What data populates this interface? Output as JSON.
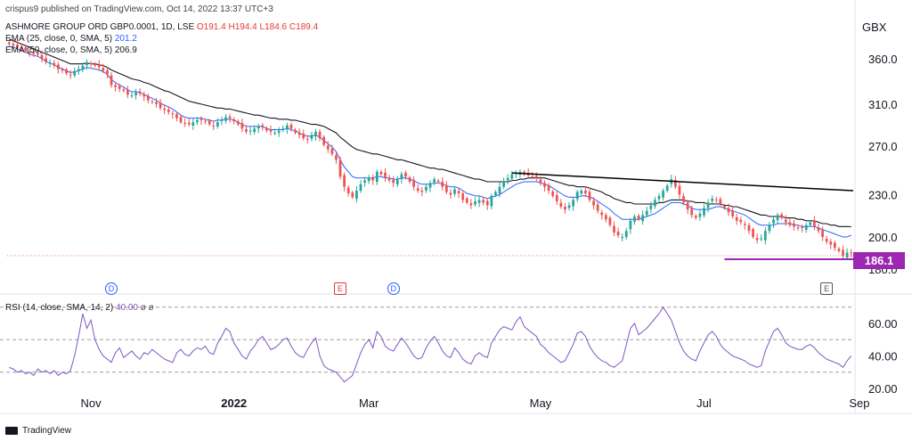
{
  "header": {
    "published": "crispus9 published on TradingView.com, Oct 14, 2022 13:37 UTC+3",
    "symbol": "ASHMORE GROUP ORD GBP0.0001, 1D, LSE",
    "ohlc": {
      "o_label": "O",
      "o": "191.4",
      "h_label": "H",
      "h": "194.4",
      "l_label": "L",
      "l": "184.6",
      "c_label": "C",
      "c": "189.4"
    },
    "ema25_label": "EMA (25, close, 0, SMA, 5)",
    "ema25_value": "201.2",
    "ema50_label": "EMA (50, close, 0, SMA, 5)",
    "ema50_value": "206.9",
    "rsi_label": "RSI (14, close, SMA, 14, 2)",
    "rsi_value": "40.00",
    "rsi_extra": "ø ø"
  },
  "currency": "GBX",
  "last_price_tag": "186.1",
  "footer": "TradingView",
  "events": [
    {
      "type": "dividend",
      "letter": "D",
      "x_index": 25
    },
    {
      "type": "earnings",
      "letter": "E",
      "x_index": 81
    },
    {
      "type": "dividend",
      "letter": "D",
      "x_index": 94
    },
    {
      "type": "earnings-past",
      "letter": "E",
      "x_index": 200
    }
  ],
  "colors": {
    "up": "#26a69a",
    "down": "#ef5350",
    "ema25": "#2962ff",
    "ema50": "#131722",
    "rsi": "#7e57c2",
    "level": "#9c27b0",
    "trend": "#000000"
  },
  "chart_data": {
    "type": "candlestick",
    "title": "ASHMORE GROUP ORD GBP0.0001, 1D, LSE",
    "price_axis": {
      "ticks": [
        360.0,
        310.0,
        270.0,
        230.0,
        200.0,
        180.0
      ],
      "labels": [
        "360.0",
        "310.0",
        "270.0",
        "230.0",
        "200.0",
        "180.0"
      ],
      "scale": "log"
    },
    "rsi_axis": {
      "ticks": [
        60,
        40,
        20
      ],
      "labels": [
        "60.00",
        "40.00",
        "20.00"
      ],
      "levels": [
        70,
        50,
        30
      ]
    },
    "time_axis": {
      "labels": [
        "Nov",
        "2022",
        "Mar",
        "May",
        "Jul",
        "Sep"
      ],
      "label_index": [
        20,
        55,
        88,
        130,
        170,
        208
      ]
    },
    "close": [
      378,
      376,
      374,
      373,
      370,
      368,
      366,
      365,
      360,
      356,
      355,
      352,
      348,
      347,
      343,
      341,
      345,
      348,
      352,
      356,
      354,
      352,
      350,
      346,
      342,
      330,
      328,
      326,
      324,
      320,
      319,
      322,
      321,
      318,
      314,
      312,
      310,
      306,
      304,
      302,
      300,
      296,
      292,
      291,
      290,
      292,
      294,
      294,
      293,
      290,
      288,
      292,
      294,
      297,
      296,
      293,
      290,
      286,
      283,
      284,
      286,
      288,
      287,
      284,
      283,
      282,
      284,
      286,
      289,
      286,
      282,
      280,
      277,
      276,
      280,
      283,
      277,
      271,
      267,
      263,
      258,
      244,
      236,
      231,
      228,
      233,
      238,
      241,
      243,
      241,
      248,
      246,
      243,
      241,
      239,
      242,
      246,
      244,
      240,
      236,
      233,
      232,
      236,
      239,
      242,
      240,
      236,
      232,
      230,
      234,
      231,
      226,
      224,
      222,
      225,
      226,
      224,
      222,
      229,
      232,
      236,
      240,
      243,
      246,
      247,
      248,
      246,
      245,
      244,
      243,
      239,
      236,
      233,
      229,
      225,
      221,
      219,
      222,
      226,
      232,
      233,
      231,
      226,
      222,
      218,
      215,
      212,
      208,
      203,
      201,
      200,
      204,
      211,
      214,
      212,
      215,
      218,
      222,
      226,
      229,
      233,
      237,
      242,
      236,
      230,
      224,
      219,
      215,
      213,
      216,
      220,
      224,
      227,
      226,
      223,
      220,
      217,
      214,
      211,
      210,
      208,
      204,
      200,
      198,
      199,
      204,
      208,
      212,
      215,
      213,
      210,
      208,
      207,
      206,
      206,
      208,
      210,
      207,
      204,
      200,
      197,
      195,
      193,
      191,
      188,
      190,
      189.4
    ],
    "ema25": [
      375,
      374,
      372,
      370,
      368,
      366,
      364,
      363,
      360,
      357,
      355,
      353,
      350,
      348,
      346,
      344,
      345,
      346,
      348,
      350,
      349,
      348,
      347,
      345,
      342,
      336,
      333,
      330,
      328,
      325,
      323,
      323,
      322,
      320,
      318,
      316,
      314,
      311,
      309,
      307,
      305,
      302,
      299,
      297,
      296,
      296,
      296,
      296,
      295,
      294,
      293,
      294,
      294,
      295,
      295,
      294,
      292,
      290,
      288,
      288,
      288,
      288,
      288,
      286,
      285,
      285,
      285,
      285,
      286,
      285,
      284,
      282,
      280,
      279,
      279,
      280,
      278,
      275,
      272,
      269,
      265,
      258,
      252,
      248,
      244,
      243,
      243,
      243,
      243,
      243,
      244,
      244,
      243,
      243,
      242,
      242,
      243,
      243,
      242,
      241,
      239,
      238,
      238,
      238,
      239,
      239,
      238,
      237,
      236,
      236,
      235,
      233,
      231,
      230,
      229,
      229,
      228,
      227,
      228,
      229,
      230,
      232,
      234,
      236,
      238,
      239,
      240,
      240,
      240,
      240,
      239,
      238,
      237,
      235,
      233,
      231,
      229,
      228,
      228,
      228,
      229,
      229,
      228,
      227,
      225,
      223,
      221,
      219,
      216,
      214,
      212,
      212,
      212,
      212,
      212,
      213,
      214,
      215,
      216,
      218,
      220,
      222,
      224,
      224,
      224,
      223,
      222,
      220,
      219,
      219,
      219,
      219,
      220,
      221,
      221,
      220,
      219,
      218,
      217,
      216,
      215,
      213,
      211,
      209,
      208,
      208,
      208,
      208,
      209,
      209,
      209,
      209,
      208,
      208,
      207,
      207,
      207,
      207,
      206,
      205,
      204,
      203,
      202,
      201,
      200,
      200,
      201.2
    ],
    "ema50": [
      384,
      382,
      380,
      378,
      376,
      374,
      372,
      370,
      368,
      366,
      364,
      362,
      360,
      358,
      356,
      354,
      354,
      354,
      354,
      355,
      354,
      354,
      353,
      352,
      350,
      347,
      345,
      343,
      341,
      339,
      337,
      336,
      335,
      333,
      332,
      330,
      328,
      326,
      324,
      323,
      321,
      319,
      317,
      315,
      313,
      312,
      311,
      310,
      309,
      308,
      307,
      306,
      306,
      305,
      305,
      304,
      303,
      302,
      301,
      300,
      299,
      299,
      298,
      297,
      296,
      296,
      295,
      295,
      295,
      294,
      294,
      293,
      292,
      291,
      290,
      290,
      289,
      288,
      286,
      284,
      282,
      278,
      275,
      272,
      269,
      267,
      266,
      265,
      264,
      263,
      263,
      262,
      261,
      260,
      259,
      258,
      258,
      257,
      256,
      255,
      254,
      253,
      252,
      251,
      251,
      250,
      250,
      249,
      248,
      247,
      246,
      245,
      244,
      243,
      242,
      242,
      241,
      240,
      240,
      240,
      240,
      240,
      240,
      241,
      241,
      242,
      242,
      243,
      243,
      243,
      243,
      243,
      242,
      241,
      240,
      239,
      238,
      237,
      237,
      236,
      236,
      236,
      235,
      234,
      233,
      232,
      230,
      229,
      227,
      226,
      225,
      224,
      224,
      223,
      223,
      223,
      223,
      223,
      223,
      224,
      224,
      225,
      226,
      226,
      226,
      226,
      225,
      225,
      224,
      224,
      224,
      223,
      223,
      223,
      223,
      222,
      222,
      221,
      221,
      220,
      219,
      218,
      217,
      216,
      215,
      215,
      214,
      214,
      214,
      214,
      213,
      213,
      213,
      212,
      212,
      211,
      211,
      211,
      210,
      209,
      209,
      208,
      208,
      207,
      207,
      207,
      206.9
    ],
    "rsi": [
      33,
      32,
      30,
      31,
      29,
      30,
      28,
      32,
      30,
      31,
      29,
      31,
      28,
      30,
      29,
      31,
      40,
      52,
      66,
      57,
      62,
      50,
      44,
      40,
      38,
      36,
      42,
      45,
      39,
      41,
      43,
      40,
      38,
      42,
      41,
      44,
      42,
      40,
      38,
      37,
      36,
      42,
      44,
      41,
      40,
      43,
      45,
      44,
      46,
      42,
      41,
      48,
      52,
      57,
      55,
      48,
      44,
      40,
      38,
      43,
      46,
      50,
      52,
      48,
      44,
      45,
      47,
      50,
      51,
      46,
      42,
      40,
      39,
      44,
      48,
      51,
      40,
      34,
      32,
      31,
      30,
      27,
      24,
      26,
      28,
      35,
      42,
      47,
      50,
      45,
      55,
      52,
      46,
      44,
      43,
      47,
      51,
      48,
      44,
      40,
      38,
      39,
      45,
      49,
      52,
      48,
      43,
      40,
      39,
      45,
      42,
      38,
      36,
      35,
      40,
      42,
      40,
      39,
      48,
      52,
      56,
      58,
      57,
      56,
      61,
      64,
      58,
      56,
      54,
      52,
      47,
      45,
      42,
      40,
      38,
      36,
      37,
      42,
      47,
      54,
      55,
      52,
      46,
      42,
      39,
      37,
      36,
      34,
      33,
      35,
      37,
      47,
      57,
      60,
      53,
      55,
      57,
      60,
      63,
      66,
      70,
      66,
      62,
      55,
      48,
      43,
      40,
      38,
      37,
      43,
      48,
      53,
      55,
      52,
      47,
      44,
      42,
      40,
      39,
      38,
      37,
      35,
      34,
      33,
      34,
      43,
      49,
      55,
      57,
      53,
      48,
      46,
      45,
      44,
      44,
      46,
      47,
      45,
      42,
      40,
      38,
      37,
      36,
      35,
      33,
      37,
      40
    ]
  }
}
